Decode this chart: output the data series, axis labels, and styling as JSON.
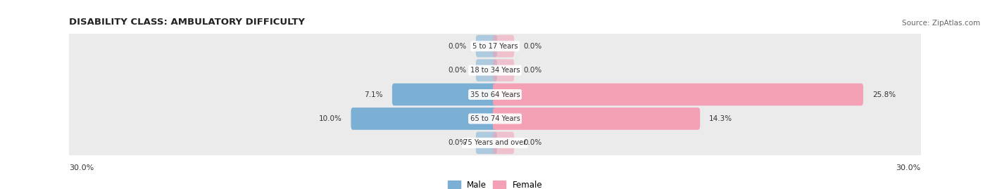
{
  "title": "DISABILITY CLASS: AMBULATORY DIFFICULTY",
  "source": "Source: ZipAtlas.com",
  "categories": [
    "5 to 17 Years",
    "18 to 34 Years",
    "35 to 64 Years",
    "65 to 74 Years",
    "75 Years and over"
  ],
  "male_values": [
    0.0,
    0.0,
    7.1,
    10.0,
    0.0
  ],
  "female_values": [
    0.0,
    0.0,
    25.8,
    14.3,
    0.0
  ],
  "max_value": 30.0,
  "male_color": "#7bafd4",
  "female_color": "#f4a0b5",
  "male_label": "Male",
  "female_label": "Female",
  "row_bg_color": "#ebebeb",
  "title_color": "#222222",
  "source_color": "#666666",
  "label_color": "#333333",
  "figsize": [
    14.06,
    2.69
  ],
  "dpi": 100
}
